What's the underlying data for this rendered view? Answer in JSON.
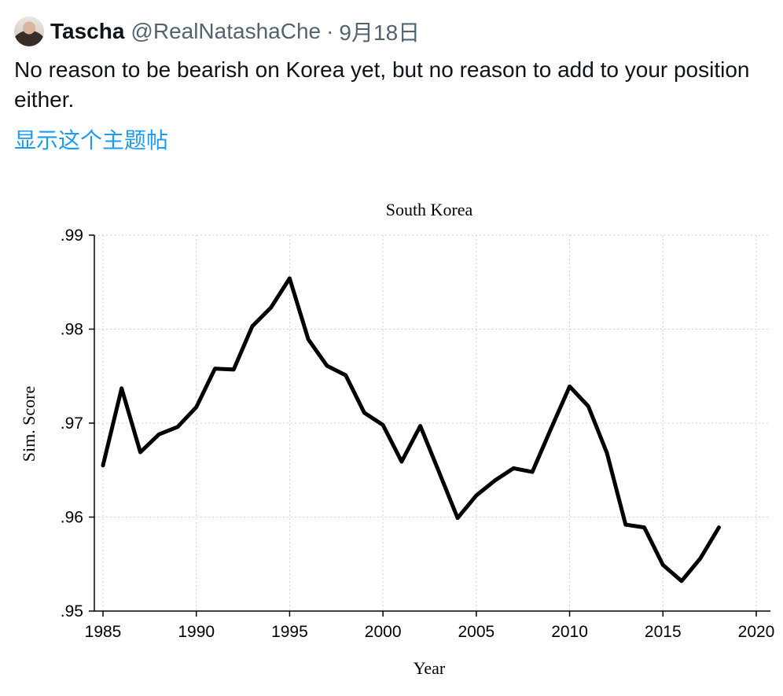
{
  "tweet": {
    "author_name": "Tascha",
    "author_handle": "@RealNatashaChe",
    "separator": "·",
    "date": "9月18日",
    "text": "No reason to be bearish on Korea yet, but no reason to add to your position either.",
    "show_thread_label": "显示这个主题帖"
  },
  "chart_data": {
    "type": "line",
    "title": "South Korea",
    "xlabel": "Year",
    "ylabel": "Sim. Score",
    "xlim": [
      1985,
      2020
    ],
    "ylim": [
      0.95,
      0.99
    ],
    "xticks": [
      1985,
      1990,
      1995,
      2000,
      2005,
      2010,
      2015,
      2020
    ],
    "yticks": [
      0.95,
      0.96,
      0.97,
      0.98,
      0.99
    ],
    "ytick_labels": [
      ".95",
      ".96",
      ".97",
      ".98",
      ".99"
    ],
    "grid": true,
    "line_color": "#000000",
    "series": [
      {
        "x": [
          1985,
          1986,
          1987,
          1988,
          1989,
          1990,
          1991,
          1992,
          1993,
          1994,
          1995,
          1996,
          1997,
          1998,
          1999,
          2000,
          2001,
          2002,
          2003,
          2004,
          2005,
          2006,
          2007,
          2008,
          2009,
          2010,
          2011,
          2012,
          2013,
          2014,
          2015,
          2016,
          2017,
          2018
        ],
        "y": [
          0.9655,
          0.9737,
          0.9669,
          0.9688,
          0.9696,
          0.9717,
          0.9758,
          0.9757,
          0.9803,
          0.9823,
          0.9854,
          0.9789,
          0.9761,
          0.9751,
          0.9711,
          0.9698,
          0.9659,
          0.9697,
          0.9648,
          0.9599,
          0.9623,
          0.9639,
          0.9652,
          0.9648,
          0.9694,
          0.9739,
          0.9718,
          0.9668,
          0.9592,
          0.9589,
          0.9549,
          0.9532,
          0.9556,
          0.9589
        ]
      }
    ]
  }
}
